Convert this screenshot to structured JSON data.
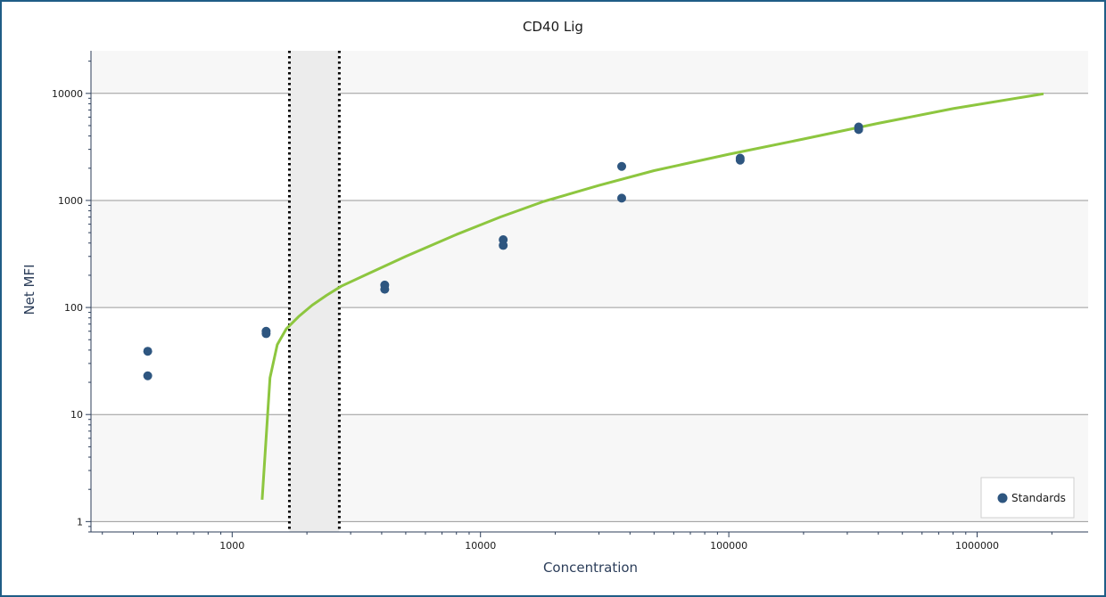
{
  "chart_data": {
    "type": "scatter",
    "title": "CD40 Lig",
    "xlabel": "Concentration",
    "ylabel": "Net MFI",
    "x_scale": "log",
    "y_scale": "log",
    "xlim": [
      270,
      2800000
    ],
    "ylim": [
      0.8,
      25000
    ],
    "x_ticks": [
      1000,
      10000,
      100000,
      1000000
    ],
    "x_tick_labels": [
      "1000",
      "10000",
      "100000",
      "1000000"
    ],
    "y_ticks": [
      1,
      10,
      100,
      1000,
      10000
    ],
    "y_tick_labels": [
      "1",
      "10",
      "100",
      "1000",
      "10000"
    ],
    "grid": "horizontal",
    "legend": {
      "position": "bottom-right",
      "entries": [
        "Standards"
      ]
    },
    "series": [
      {
        "name": "Standards",
        "kind": "scatter",
        "color": "#2e5680",
        "points": [
          [
            457,
            39
          ],
          [
            457,
            23
          ],
          [
            1370,
            60
          ],
          [
            1370,
            57
          ],
          [
            4115,
            162
          ],
          [
            4115,
            148
          ],
          [
            12345,
            430
          ],
          [
            12345,
            380
          ],
          [
            37037,
            2080
          ],
          [
            37037,
            1050
          ],
          [
            111111,
            2480
          ],
          [
            111111,
            2380
          ],
          [
            333333,
            4850
          ],
          [
            333333,
            4600
          ]
        ]
      },
      {
        "kind": "line",
        "color": "#8dc63f",
        "points": [
          [
            1320,
            1.6
          ],
          [
            1420,
            22
          ],
          [
            1520,
            45
          ],
          [
            1650,
            63
          ],
          [
            1850,
            82
          ],
          [
            2100,
            105
          ],
          [
            2400,
            130
          ],
          [
            2750,
            158
          ],
          [
            3500,
            205
          ],
          [
            5000,
            300
          ],
          [
            8000,
            480
          ],
          [
            12000,
            700
          ],
          [
            18000,
            980
          ],
          [
            30000,
            1380
          ],
          [
            50000,
            1900
          ],
          [
            100000,
            2700
          ],
          [
            200000,
            3750
          ],
          [
            400000,
            5250
          ],
          [
            800000,
            7200
          ],
          [
            1850000,
            9900
          ]
        ]
      }
    ],
    "lod_lines": [
      1700,
      2700
    ],
    "colors": {
      "band_fill": "#f7f7f7",
      "lod_band_fill": "#ececec",
      "grid": "#9a9a9a",
      "axis": "#2c3e5a",
      "frame": "#1f5d86"
    }
  }
}
